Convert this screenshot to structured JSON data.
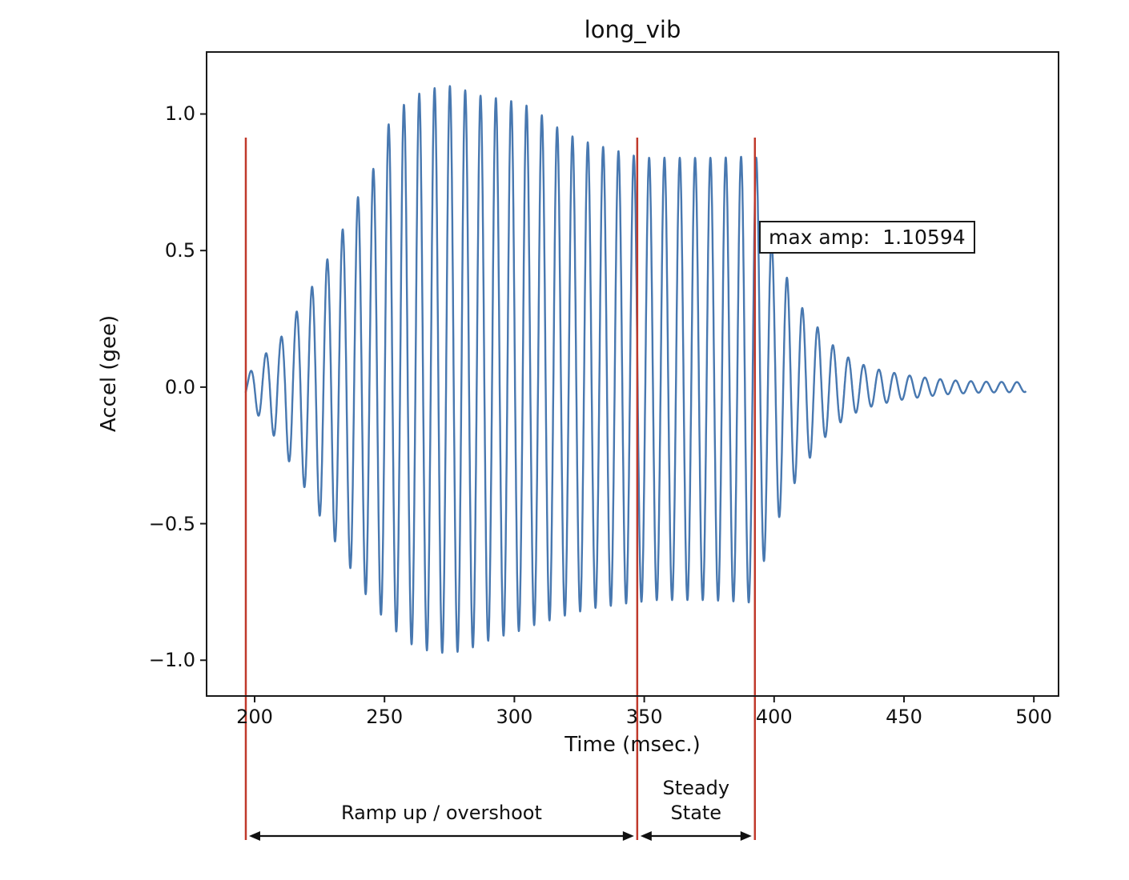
{
  "title": "long_vib",
  "axes": {
    "xlabel": "Time (msec.)",
    "ylabel": "Accel (gee)",
    "xticks": [
      200,
      250,
      300,
      350,
      400,
      450,
      500
    ],
    "yticks": [
      -1.0,
      -0.5,
      0.0,
      0.5,
      1.0
    ],
    "xlim": [
      181.5,
      509.5
    ],
    "ylim": [
      -1.131,
      1.227
    ]
  },
  "chart_data": {
    "type": "line",
    "title": "long_vib",
    "xlabel": "Time (msec.)",
    "ylabel": "Accel (gee)",
    "xlim": [
      181.5,
      509.5
    ],
    "ylim": [
      -1.131,
      1.227
    ],
    "grid": false,
    "legend": "none",
    "series_name": "acceleration waveform",
    "series_color": "#4878b0",
    "max_amp": 1.10594,
    "steady_state_amp": 0.85,
    "signal": {
      "t_start": 196.5,
      "t_end": 497,
      "period_ms": 5.9,
      "phase_t0": 197,
      "upper_envelope": [
        [
          196.5,
          0.03
        ],
        [
          200,
          0.08
        ],
        [
          205,
          0.13
        ],
        [
          210,
          0.18
        ],
        [
          215,
          0.26
        ],
        [
          220,
          0.33
        ],
        [
          225,
          0.42
        ],
        [
          230,
          0.5
        ],
        [
          235,
          0.6
        ],
        [
          240,
          0.7
        ],
        [
          245,
          0.78
        ],
        [
          250,
          0.92
        ],
        [
          253,
          1.0
        ],
        [
          257,
          1.03
        ],
        [
          262,
          1.07
        ],
        [
          268,
          1.09
        ],
        [
          272,
          1.106
        ],
        [
          278,
          1.1
        ],
        [
          285,
          1.07
        ],
        [
          292,
          1.06
        ],
        [
          298,
          1.05
        ],
        [
          305,
          1.03
        ],
        [
          310,
          1.0
        ],
        [
          315,
          0.96
        ],
        [
          322,
          0.92
        ],
        [
          330,
          0.89
        ],
        [
          338,
          0.87
        ],
        [
          345,
          0.85
        ],
        [
          350,
          0.84
        ],
        [
          360,
          0.84
        ],
        [
          370,
          0.84
        ],
        [
          380,
          0.84
        ],
        [
          390,
          0.845
        ],
        [
          393,
          0.85
        ],
        [
          396,
          0.65
        ],
        [
          400,
          0.5
        ],
        [
          405,
          0.4
        ],
        [
          410,
          0.3
        ],
        [
          415,
          0.24
        ],
        [
          420,
          0.18
        ],
        [
          425,
          0.13
        ],
        [
          430,
          0.1
        ],
        [
          436,
          0.075
        ],
        [
          442,
          0.06
        ],
        [
          450,
          0.045
        ],
        [
          458,
          0.035
        ],
        [
          468,
          0.025
        ],
        [
          480,
          0.02
        ],
        [
          497,
          0.018
        ]
      ],
      "lower_envelope": [
        [
          196.5,
          -0.04
        ],
        [
          200,
          -0.09
        ],
        [
          205,
          -0.14
        ],
        [
          210,
          -0.22
        ],
        [
          215,
          -0.3
        ],
        [
          220,
          -0.38
        ],
        [
          225,
          -0.47
        ],
        [
          230,
          -0.55
        ],
        [
          235,
          -0.63
        ],
        [
          240,
          -0.72
        ],
        [
          245,
          -0.79
        ],
        [
          250,
          -0.85
        ],
        [
          255,
          -0.9
        ],
        [
          260,
          -0.94
        ],
        [
          265,
          -0.96
        ],
        [
          270,
          -0.975
        ],
        [
          278,
          -0.97
        ],
        [
          285,
          -0.95
        ],
        [
          292,
          -0.92
        ],
        [
          300,
          -0.9
        ],
        [
          308,
          -0.87
        ],
        [
          315,
          -0.85
        ],
        [
          322,
          -0.83
        ],
        [
          330,
          -0.81
        ],
        [
          338,
          -0.8
        ],
        [
          345,
          -0.79
        ],
        [
          355,
          -0.78
        ],
        [
          365,
          -0.78
        ],
        [
          375,
          -0.78
        ],
        [
          385,
          -0.785
        ],
        [
          392,
          -0.79
        ],
        [
          394,
          -0.7
        ],
        [
          398,
          -0.58
        ],
        [
          403,
          -0.45
        ],
        [
          408,
          -0.35
        ],
        [
          413,
          -0.27
        ],
        [
          418,
          -0.2
        ],
        [
          424,
          -0.14
        ],
        [
          430,
          -0.1
        ],
        [
          436,
          -0.075
        ],
        [
          442,
          -0.06
        ],
        [
          450,
          -0.045
        ],
        [
          458,
          -0.035
        ],
        [
          468,
          -0.025
        ],
        [
          480,
          -0.02
        ],
        [
          497,
          -0.018
        ]
      ]
    }
  },
  "annotations": {
    "max_amp_label": "max amp:  1.10594",
    "vlines": [
      196.6,
      347.3,
      392.6
    ],
    "vline_color": "#c0392b",
    "regions": [
      {
        "label": "Ramp up / overshoot",
        "from": 196.6,
        "to": 347.3
      },
      {
        "label": "Steady\nState",
        "from": 347.3,
        "to": 392.6
      }
    ]
  }
}
